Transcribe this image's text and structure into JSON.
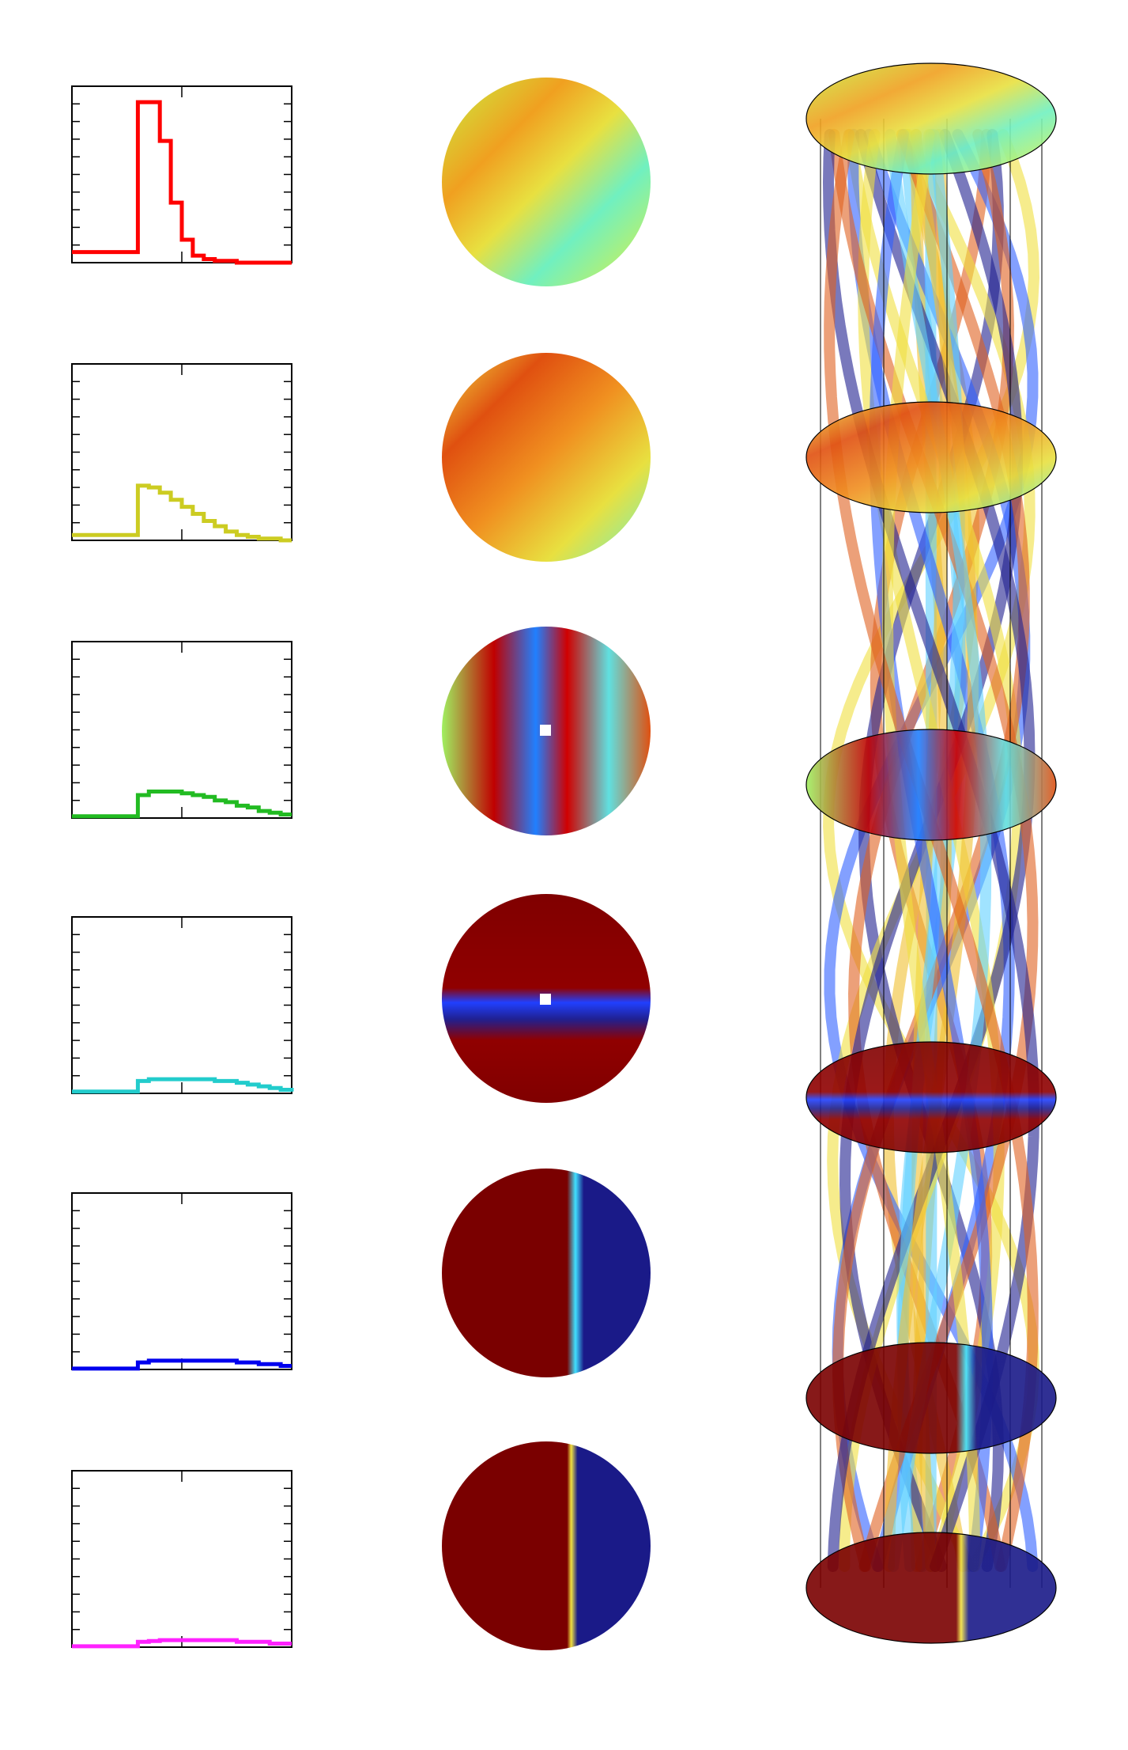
{
  "chart_data": [
    {
      "type": "line",
      "drawstyle": "steps-post",
      "color": "#ff0000",
      "xlim": [
        0,
        10
      ],
      "ylim": [
        0,
        10
      ],
      "xticks": [
        0,
        5,
        10
      ],
      "yticks": [
        0,
        1,
        2,
        3,
        4,
        5,
        6,
        7,
        8,
        9,
        10
      ],
      "x": [
        0,
        0.5,
        1,
        1.5,
        2,
        2.5,
        3,
        3.5,
        4,
        4.5,
        5,
        5.5,
        6,
        6.5,
        7,
        7.5,
        8,
        8.5,
        9,
        9.5,
        10
      ],
      "values": [
        0.6,
        0.6,
        0.6,
        0.6,
        0.6,
        0.6,
        9.1,
        9.1,
        6.9,
        3.4,
        1.3,
        0.4,
        0.2,
        0.1,
        0.1,
        0,
        0,
        0,
        0,
        0,
        0
      ]
    },
    {
      "type": "line",
      "drawstyle": "steps-post",
      "color": "#cccc22",
      "xlim": [
        0,
        10
      ],
      "ylim": [
        0,
        10
      ],
      "xticks": [
        0,
        5,
        10
      ],
      "yticks": [
        0,
        1,
        2,
        3,
        4,
        5,
        6,
        7,
        8,
        9,
        10
      ],
      "x": [
        0,
        0.5,
        1,
        1.5,
        2,
        2.5,
        3,
        3.5,
        4,
        4.5,
        5,
        5.5,
        6,
        6.5,
        7,
        7.5,
        8,
        8.5,
        9,
        9.5,
        10
      ],
      "values": [
        0.3,
        0.3,
        0.3,
        0.3,
        0.3,
        0.3,
        3.1,
        3.0,
        2.7,
        2.3,
        1.9,
        1.5,
        1.1,
        0.8,
        0.5,
        0.3,
        0.2,
        0.1,
        0.1,
        0,
        0
      ]
    },
    {
      "type": "line",
      "drawstyle": "steps-post",
      "color": "#22bb22",
      "xlim": [
        0,
        10
      ],
      "ylim": [
        0,
        10
      ],
      "xticks": [
        0,
        5,
        10
      ],
      "yticks": [
        0,
        1,
        2,
        3,
        4,
        5,
        6,
        7,
        8,
        9,
        10
      ],
      "x": [
        0,
        0.5,
        1,
        1.5,
        2,
        2.5,
        3,
        3.5,
        4,
        4.5,
        5,
        5.5,
        6,
        6.5,
        7,
        7.5,
        8,
        8.5,
        9,
        9.5,
        10
      ],
      "values": [
        0.1,
        0.1,
        0.1,
        0.1,
        0.1,
        0.1,
        1.3,
        1.5,
        1.5,
        1.5,
        1.4,
        1.3,
        1.2,
        1.0,
        0.9,
        0.7,
        0.6,
        0.4,
        0.3,
        0.2,
        0.2
      ]
    },
    {
      "type": "line",
      "drawstyle": "steps-post",
      "color": "#22cccc",
      "xlim": [
        0,
        10
      ],
      "ylim": [
        0,
        10
      ],
      "xticks": [
        0,
        5,
        10
      ],
      "yticks": [
        0,
        1,
        2,
        3,
        4,
        5,
        6,
        7,
        8,
        9,
        10
      ],
      "x": [
        0,
        0.5,
        1,
        1.5,
        2,
        2.5,
        3,
        3.5,
        4,
        4.5,
        5,
        5.5,
        6,
        6.5,
        7,
        7.5,
        8,
        8.5,
        9,
        9.5,
        10
      ],
      "values": [
        0.1,
        0.1,
        0.1,
        0.1,
        0.1,
        0.1,
        0.7,
        0.8,
        0.8,
        0.8,
        0.8,
        0.8,
        0.8,
        0.7,
        0.7,
        0.6,
        0.5,
        0.4,
        0.3,
        0.2,
        0.1
      ]
    },
    {
      "type": "line",
      "drawstyle": "steps-post",
      "color": "#0000ee",
      "xlim": [
        0,
        10
      ],
      "ylim": [
        0,
        10
      ],
      "xticks": [
        0,
        5,
        10
      ],
      "yticks": [
        0,
        1,
        2,
        3,
        4,
        5,
        6,
        7,
        8,
        9,
        10
      ],
      "x": [
        0,
        0.5,
        1,
        1.5,
        2,
        2.5,
        3,
        3.5,
        4,
        4.5,
        5,
        5.5,
        6,
        6.5,
        7,
        7.5,
        8,
        8.5,
        9,
        9.5,
        10
      ],
      "values": [
        0.05,
        0.05,
        0.05,
        0.05,
        0.05,
        0.05,
        0.4,
        0.5,
        0.5,
        0.5,
        0.5,
        0.5,
        0.5,
        0.5,
        0.5,
        0.4,
        0.4,
        0.3,
        0.3,
        0.2,
        0.2
      ]
    },
    {
      "type": "line",
      "drawstyle": "steps-post",
      "color": "#ff22ff",
      "xlim": [
        0,
        10
      ],
      "ylim": [
        0,
        10
      ],
      "xticks": [
        0,
        5,
        10
      ],
      "yticks": [
        0,
        1,
        2,
        3,
        4,
        5,
        6,
        7,
        8,
        9,
        10
      ],
      "x": [
        0,
        0.5,
        1,
        1.5,
        2,
        2.5,
        3,
        3.5,
        4,
        4.5,
        5,
        5.5,
        6,
        6.5,
        7,
        7.5,
        8,
        8.5,
        9,
        9.5,
        10
      ],
      "values": [
        0.05,
        0.05,
        0.05,
        0.05,
        0.05,
        0.05,
        0.3,
        0.35,
        0.4,
        0.4,
        0.4,
        0.4,
        0.4,
        0.4,
        0.4,
        0.3,
        0.3,
        0.3,
        0.2,
        0.2,
        0.2
      ]
    }
  ]
}
